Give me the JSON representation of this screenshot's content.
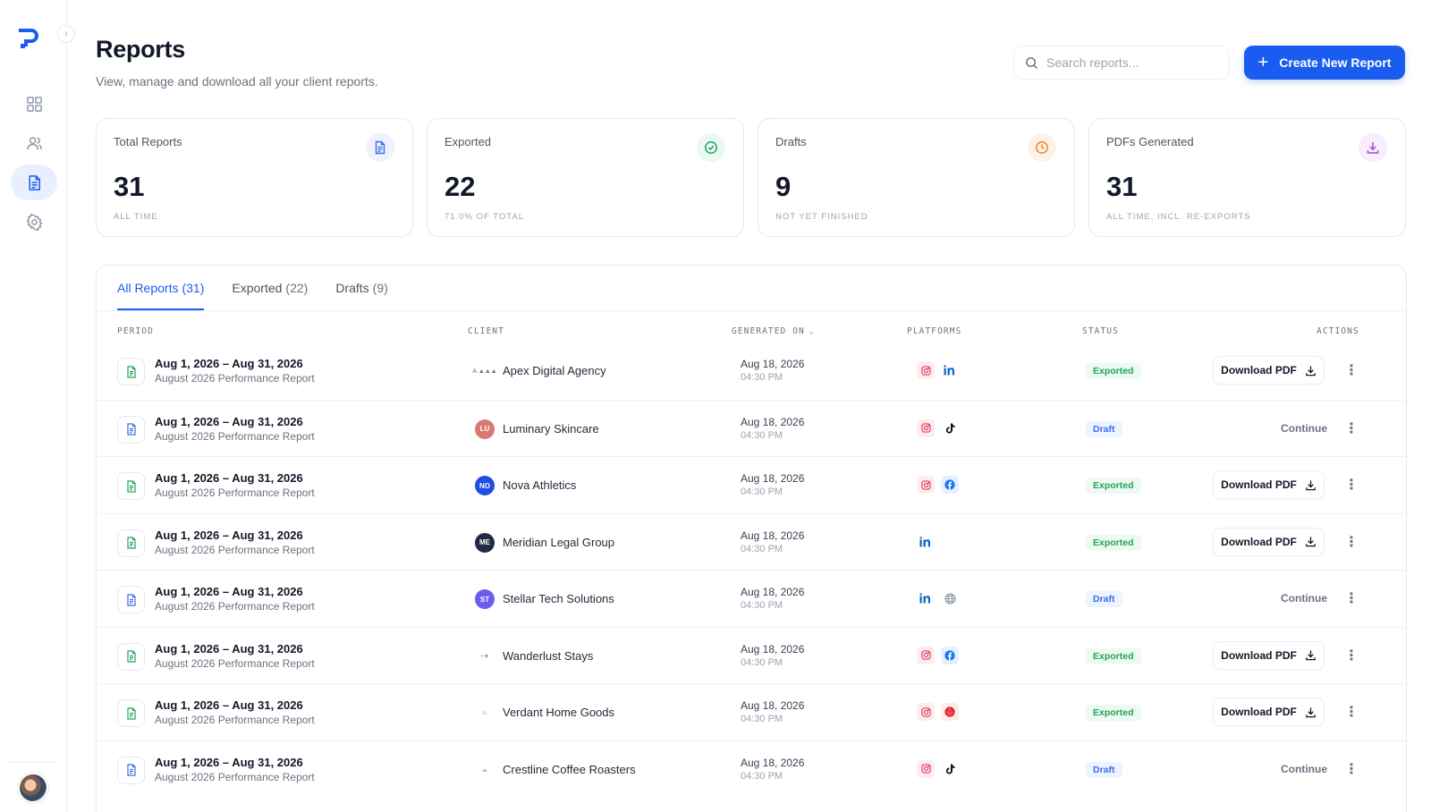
{
  "sidebar": {
    "collapse_glyph": "›",
    "nav": [
      {
        "icon": "dashboard-icon"
      },
      {
        "icon": "users-icon"
      },
      {
        "icon": "reports-icon",
        "active": true
      },
      {
        "icon": "settings-icon"
      }
    ]
  },
  "header": {
    "title": "Reports",
    "subtitle": "View, manage and download all your client reports.",
    "search_placeholder": "Search reports...",
    "create_label": "Create New Report",
    "create_glyph": "+"
  },
  "stats": [
    {
      "label": "Total Reports",
      "value": "31",
      "sub": "All time",
      "icon": "document-icon",
      "color": "#3b6ee8",
      "bg": "#edf2fd"
    },
    {
      "label": "Exported",
      "value": "22",
      "sub": "71.0% of total",
      "icon": "check-circle-icon",
      "color": "#15a36a",
      "bg": "#e9f8f1"
    },
    {
      "label": "Drafts",
      "value": "9",
      "sub": "Not yet finished",
      "icon": "clock-icon",
      "color": "#f0801f",
      "bg": "#fdf2e9"
    },
    {
      "label": "PDFs Generated",
      "value": "31",
      "sub": "All time, incl. re-exports",
      "icon": "download-icon",
      "color": "#a64fd6",
      "bg": "#f7edfc"
    }
  ],
  "tabs": [
    {
      "label": "All Reports",
      "count": "(31)",
      "active": true
    },
    {
      "label": "Exported",
      "count": "(22)"
    },
    {
      "label": "Drafts",
      "count": "(9)"
    }
  ],
  "columns": {
    "period": "PERIOD",
    "client": "CLIENT",
    "generated_on": "GENERATED ON",
    "generated_chev": "⌄",
    "platforms": "PLATFORMS",
    "status": "STATUS",
    "actions": "ACTIONS"
  },
  "colors": {
    "accent": "#1a5cf0",
    "exported_icon": "#22a35a",
    "draft_icon": "#3b6ee8"
  },
  "rows": [
    {
      "period": "Aug 1, 2026 – Aug 31, 2026",
      "report": "August 2026 Performance Report",
      "client": "Apex Digital Agency",
      "initials": "A.▲▲▲",
      "logo_type": "img",
      "logo_bg": "#ffffff",
      "date": "Aug 18, 2026",
      "time": "04:30 PM",
      "platforms": [
        "instagram",
        "linkedin"
      ],
      "status": "Exported",
      "action": "Download PDF"
    },
    {
      "period": "Aug 1, 2026 – Aug 31, 2026",
      "report": "August 2026 Performance Report",
      "client": "Luminary Skincare",
      "initials": "LU",
      "logo_type": "circle",
      "logo_bg": "#d97a72",
      "date": "Aug 18, 2026",
      "time": "04:30 PM",
      "platforms": [
        "instagram",
        "tiktok"
      ],
      "status": "Draft",
      "action": "Continue"
    },
    {
      "period": "Aug 1, 2026 – Aug 31, 2026",
      "report": "August 2026 Performance Report",
      "client": "Nova Athletics",
      "initials": "NO",
      "logo_type": "circle",
      "logo_bg": "#1e4fe0",
      "date": "Aug 18, 2026",
      "time": "04:30 PM",
      "platforms": [
        "instagram",
        "facebook"
      ],
      "status": "Exported",
      "action": "Download PDF"
    },
    {
      "period": "Aug 1, 2026 – Aug 31, 2026",
      "report": "August 2026 Performance Report",
      "client": "Meridian Legal Group",
      "initials": "ME",
      "logo_type": "circle",
      "logo_bg": "#1f2a44",
      "date": "Aug 18, 2026",
      "time": "04:30 PM",
      "platforms": [
        "linkedin"
      ],
      "status": "Exported",
      "action": "Download PDF"
    },
    {
      "period": "Aug 1, 2026 – Aug 31, 2026",
      "report": "August 2026 Performance Report",
      "client": "Stellar Tech Solutions",
      "initials": "ST",
      "logo_type": "circle",
      "logo_bg": "#6b5cf0",
      "date": "Aug 18, 2026",
      "time": "04:30 PM",
      "platforms": [
        "linkedin",
        "web"
      ],
      "status": "Draft",
      "action": "Continue"
    },
    {
      "period": "Aug 1, 2026 – Aug 31, 2026",
      "report": "August 2026 Performance Report",
      "client": "Wanderlust Stays",
      "initials": "~✈",
      "logo_type": "img",
      "logo_bg": "#ffffff",
      "date": "Aug 18, 2026",
      "time": "04:30 PM",
      "platforms": [
        "instagram",
        "facebook"
      ],
      "status": "Exported",
      "action": "Download PDF"
    },
    {
      "period": "Aug 1, 2026 – Aug 31, 2026",
      "report": "August 2026 Performance Report",
      "client": "Verdant Home Goods",
      "initials": "⌂",
      "logo_type": "img",
      "logo_bg": "#ffffff",
      "date": "Aug 18, 2026",
      "time": "04:30 PM",
      "platforms": [
        "instagram",
        "yelp"
      ],
      "status": "Exported",
      "action": "Download PDF"
    },
    {
      "period": "Aug 1, 2026 – Aug 31, 2026",
      "report": "August 2026 Performance Report",
      "client": "Crestline Coffee Roasters",
      "initials": "☕",
      "logo_type": "img",
      "logo_bg": "#ffffff",
      "date": "Aug 18, 2026",
      "time": "04:30 PM",
      "platforms": [
        "instagram",
        "tiktok"
      ],
      "status": "Draft",
      "action": "Continue"
    }
  ]
}
